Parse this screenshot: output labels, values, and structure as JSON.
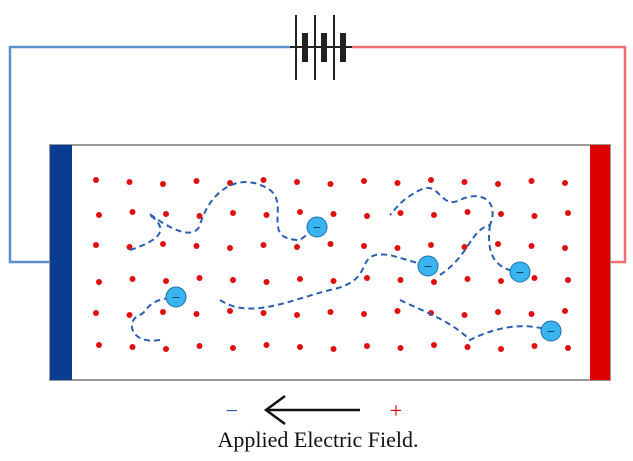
{
  "field": {
    "negative_sign": "−",
    "positive_sign": "+",
    "label": "Applied Electric Field."
  },
  "electrons": [
    {
      "label": "−"
    },
    {
      "label": "−"
    },
    {
      "label": "−"
    },
    {
      "label": "−"
    },
    {
      "label": "−"
    }
  ]
}
